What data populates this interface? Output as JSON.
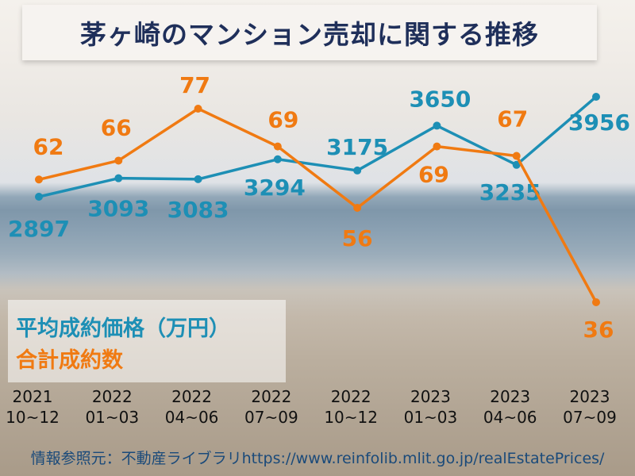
{
  "title": "茅ヶ崎のマンション売却に関する推移",
  "legend": {
    "price": "平均成約価格（万円）",
    "count": "合計成約数"
  },
  "source": "情報参照元：不動産ライブラリhttps://www.reinfolib.mlit.go.jp/realEstatePrices/",
  "colors": {
    "price": "#1d8fb5",
    "count": "#f07a12",
    "title": "#1f2f5a"
  },
  "chart_data": {
    "type": "line",
    "categories": [
      [
        "2021",
        "10~12"
      ],
      [
        "2022",
        "01~03"
      ],
      [
        "2022",
        "04~06"
      ],
      [
        "2022",
        "07~09"
      ],
      [
        "2022",
        "10~12"
      ],
      [
        "2023",
        "01~03"
      ],
      [
        "2023",
        "04~06"
      ],
      [
        "2023",
        "07~09"
      ]
    ],
    "series": [
      {
        "name": "平均成約価格（万円）",
        "key": "price",
        "values": [
          2897,
          3093,
          3083,
          3294,
          3175,
          3650,
          3235,
          3956
        ]
      },
      {
        "name": "合計成約数",
        "key": "count",
        "values": [
          62,
          66,
          77,
          69,
          56,
          69,
          67,
          36
        ]
      }
    ]
  }
}
